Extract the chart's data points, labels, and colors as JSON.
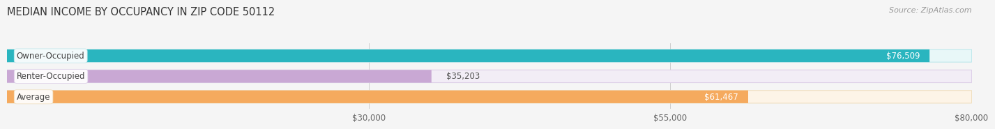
{
  "title": "MEDIAN INCOME BY OCCUPANCY IN ZIP CODE 50112",
  "source": "Source: ZipAtlas.com",
  "categories": [
    "Owner-Occupied",
    "Renter-Occupied",
    "Average"
  ],
  "values": [
    76509,
    35203,
    61467
  ],
  "bar_colors": [
    "#2ab5bf",
    "#c9a8d4",
    "#f5aa5e"
  ],
  "bar_bg_colors": [
    "#e8f7f8",
    "#f2edf6",
    "#fdf4e7"
  ],
  "bar_edge_colors": [
    "#c0e8ec",
    "#ddd0e8",
    "#f0dfc0"
  ],
  "value_labels": [
    "$76,509",
    "$35,203",
    "$61,467"
  ],
  "value_inside": [
    true,
    false,
    true
  ],
  "xlim_start": 0,
  "xlim_end": 80000,
  "xticks": [
    30000,
    55000,
    80000
  ],
  "xtick_labels": [
    "$30,000",
    "$55,000",
    "$80,000"
  ],
  "title_fontsize": 10.5,
  "source_fontsize": 8,
  "tick_fontsize": 8.5,
  "cat_label_fontsize": 8.5,
  "val_label_fontsize": 8.5,
  "bar_height": 0.62,
  "background_color": "#f5f5f5",
  "grid_color": "#cccccc",
  "cat_label_bg": "#ffffff"
}
